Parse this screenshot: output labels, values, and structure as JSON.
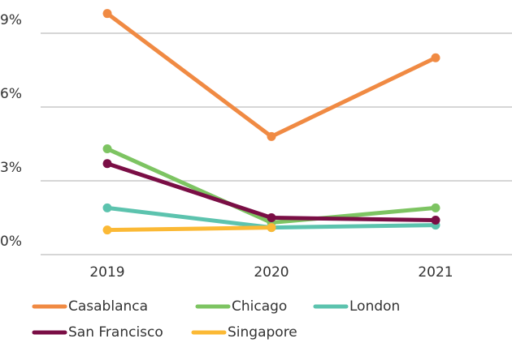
{
  "chart_data": {
    "type": "line",
    "categories": [
      "2019",
      "2020",
      "2021"
    ],
    "series": [
      {
        "name": "Casablanca",
        "color": "#f08a43",
        "values": [
          9.8,
          4.8,
          8.0
        ]
      },
      {
        "name": "Chicago",
        "color": "#7dc462",
        "values": [
          4.3,
          1.3,
          1.9
        ]
      },
      {
        "name": "London",
        "color": "#5cc3ae",
        "values": [
          1.9,
          1.1,
          1.2
        ]
      },
      {
        "name": "San Francisco",
        "color": "#7a0e45",
        "values": [
          3.7,
          1.5,
          1.4
        ]
      },
      {
        "name": "Singapore",
        "color": "#fbb935",
        "values": [
          1.0,
          1.1,
          null
        ]
      }
    ],
    "ylim": [
      0,
      10.35
    ],
    "yticks": [
      {
        "value": 0,
        "label": "0%"
      },
      {
        "value": 3,
        "label": "3%"
      },
      {
        "value": 6,
        "label": "6%"
      },
      {
        "value": 9,
        "label": "9%"
      }
    ],
    "grid": true
  }
}
